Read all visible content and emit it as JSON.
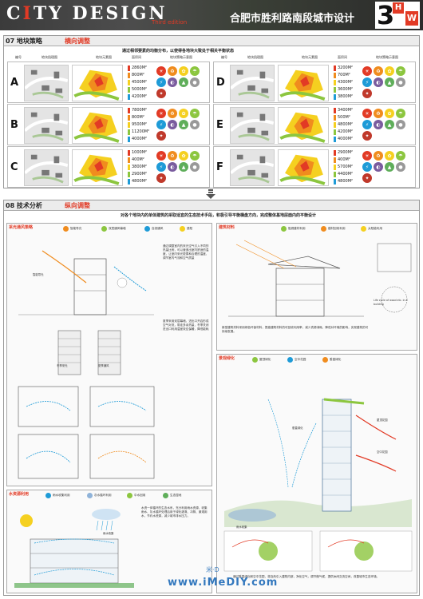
{
  "header": {
    "title_part1": "C",
    "title_accent": "I",
    "title_part2": "TY DESIGN",
    "subtitle": "Third edition",
    "title_cn": "合肥市胜利路南段城市设计",
    "logo_number": "3",
    "logo_h": "H",
    "logo_w": "W"
  },
  "section07": {
    "number": "07  地块策略",
    "keyword": "横向调整",
    "caption": "通过相邻要素的均衡分布，以使得各地块大致处于相关平衡状态",
    "headers": [
      "编号",
      "地块肌理图",
      "地块元素图",
      "面积间",
      "地块策略示意图"
    ],
    "blocks": [
      {
        "id": "A",
        "areas": [
          "2860M²",
          "800M²",
          "4500M²",
          "5000M²",
          "4200M²"
        ]
      },
      {
        "id": "B",
        "areas": [
          "7800M²",
          "800M²",
          "9500M²",
          "11200M²",
          "4000M²"
        ]
      },
      {
        "id": "C",
        "areas": [
          "1000M²",
          "400M²",
          "3800M²",
          "2900M²",
          "4800M²"
        ]
      },
      {
        "id": "D",
        "areas": [
          "3200M²",
          "700M²",
          "4300M²",
          "3600M²",
          "3800M²"
        ]
      },
      {
        "id": "E",
        "areas": [
          "3400M²",
          "500M²",
          "4800M²",
          "4200M²",
          "4000M²"
        ]
      },
      {
        "id": "F",
        "areas": [
          "2900M²",
          "400M²",
          "5700M²",
          "4400M²",
          "4800M²"
        ]
      }
    ]
  },
  "section08": {
    "number": "08  技术分析",
    "keyword": "纵向调整",
    "caption": "对各个地块内的单体建筑的采取适宜的生态技术手段，积极引导平衡横盘方向，完成整体基地层面内的平衡设计",
    "ventilation": {
      "title": "采光通风策略",
      "legend": [
        "智能导光",
        "双层通风幕墙",
        "自然通风",
        "遮阳"
      ],
      "note1": "通过调整室内的采光空气引入不同的热量比例，可以营造出室内舒适的温度，让室内采光更柔和合理的温度，调节室内气流和空气质量",
      "note2": "夏季采用双层幕墙，进出口开启形成空气对流，带走多余热量，冬季关闭进出口利用温室效应保暖，降低能耗",
      "label_a": "智能导光",
      "label_b": "冬季采光",
      "label_c": "夏季通风"
    },
    "materials": {
      "title": "建筑材料",
      "legend": [
        "阻燃建材利用",
        "建材回收利用",
        "太阳能利用"
      ],
      "note": "新型建筑材料采用绿色环保材料，提高建筑材料的可回收利用率，减少资源消耗，降低对环境的影响，实现建筑的可持续发展。",
      "diagram_label": "Life cycle of wood etc. in a building"
    },
    "landscape": {
      "title": "景观绿化",
      "legend": [
        "屋顶绿化",
        "空中花园",
        "垂直绿化"
      ],
      "note": "通过垂直绿化和空中花园，将自然引入建筑内部，净化空气，调节微气候，提供休闲交流空间，改善城市生态环境。",
      "labels": [
        "屋顶花园",
        "空中花园",
        "垂直绿化",
        "雨水收集"
      ]
    },
    "water": {
      "title": "水资源利用",
      "legend": [
        "雨水收集利用",
        "灰水循环利用",
        "中水回用",
        "生态湿地"
      ],
      "note": "水资一体循环的生态水系，充分利用雨水资源，收集雨水、灰水循环处理后用于绿化灌溉、冲厕、景观用水，节约水资源，减少城市排水压力。",
      "label": "雨水收集"
    }
  },
  "watermark": {
    "url": "www.iMeDIY.com",
    "cn": "米·D"
  },
  "colors": {
    "accent": "#e23a25",
    "orange": "#f08c1e",
    "yellow": "#f5d020",
    "green": "#8cc63f"
  }
}
